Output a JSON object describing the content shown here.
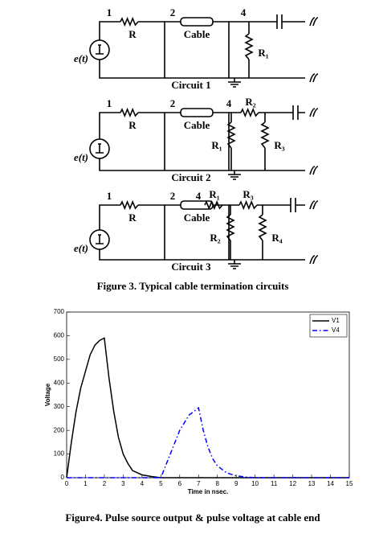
{
  "figure3": {
    "circuits": [
      {
        "title": "Circuit 1",
        "source": "e(t)",
        "nodes": [
          "1",
          "2",
          "4"
        ],
        "resistors": [
          "R",
          "R₁"
        ],
        "cable": "Cable"
      },
      {
        "title": "Circuit 2",
        "source": "e(t)",
        "nodes": [
          "1",
          "2",
          "4"
        ],
        "resistors": [
          "R",
          "R₁",
          "R₂",
          "R₃"
        ],
        "cable": "Cable"
      },
      {
        "title": "Circuit 3",
        "source": "e(t)",
        "nodes": [
          "1",
          "2",
          "4"
        ],
        "resistors": [
          "R",
          "R₁",
          "R₂",
          "R₃",
          "R₄"
        ],
        "cable": "Cable"
      }
    ],
    "caption": "Figure 3. Typical cable termination circuits"
  },
  "chart_data": {
    "type": "line",
    "xlabel": "Time in nsec.",
    "ylabel": "Voltage",
    "x": [
      0,
      0.25,
      0.5,
      0.75,
      1,
      1.25,
      1.5,
      1.75,
      2,
      2.25,
      2.5,
      2.75,
      3,
      3.25,
      3.5,
      4,
      4.5,
      5,
      5.5,
      6,
      6.5,
      7,
      7.25,
      7.5,
      7.75,
      8,
      8.5,
      9,
      9.5,
      10,
      12,
      15
    ],
    "series": [
      {
        "name": "V1",
        "color": "#000000",
        "linestyle": "solid",
        "values": [
          0,
          150,
          280,
          380,
          450,
          520,
          560,
          580,
          590,
          420,
          280,
          170,
          100,
          60,
          30,
          12,
          5,
          0,
          0,
          0,
          0,
          0,
          0,
          0,
          0,
          0,
          0,
          0,
          0,
          0,
          0,
          0
        ]
      },
      {
        "name": "V4",
        "color": "#0000ff",
        "linestyle": "dashdot",
        "values": [
          0,
          0,
          0,
          0,
          0,
          0,
          0,
          0,
          0,
          0,
          0,
          0,
          0,
          0,
          0,
          0,
          0,
          0,
          100,
          200,
          265,
          295,
          200,
          130,
          80,
          50,
          20,
          8,
          3,
          0,
          0,
          0
        ]
      }
    ],
    "xlim": [
      0,
      15
    ],
    "ylim": [
      0,
      700
    ],
    "xticks": [
      0,
      1,
      2,
      3,
      4,
      5,
      6,
      7,
      8,
      9,
      10,
      11,
      12,
      13,
      14,
      15
    ],
    "yticks": [
      0,
      100,
      200,
      300,
      400,
      500,
      600,
      700
    ],
    "legend": "upper right"
  },
  "figure4": {
    "caption": "Figure4. Pulse source output & pulse voltage at cable end"
  }
}
